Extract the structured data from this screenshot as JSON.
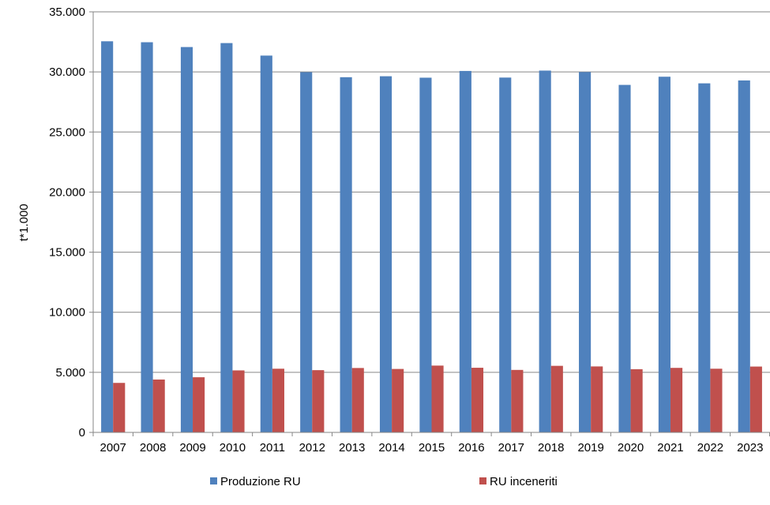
{
  "chart_data": {
    "type": "bar",
    "title": "",
    "xlabel": "",
    "ylabel": "t*1.000",
    "ylim": [
      0,
      35000
    ],
    "yticks": [
      0,
      5000,
      10000,
      15000,
      20000,
      25000,
      30000,
      35000
    ],
    "ytick_labels": [
      "0",
      "5.000",
      "10.000",
      "15.000",
      "20.000",
      "25.000",
      "30.000",
      "35.000"
    ],
    "grid": true,
    "legend_position": "bottom",
    "categories": [
      "2007",
      "2008",
      "2009",
      "2010",
      "2011",
      "2012",
      "2013",
      "2014",
      "2015",
      "2016",
      "2017",
      "2018",
      "2019",
      "2020",
      "2021",
      "2022",
      "2023"
    ],
    "series": [
      {
        "name": "Produzione RU",
        "color": "#4F81BD",
        "values": [
          32550,
          32470,
          32070,
          32400,
          31360,
          29980,
          29560,
          29640,
          29520,
          30080,
          29530,
          30110,
          29990,
          28920,
          29600,
          29050,
          29290
        ]
      },
      {
        "name": "RU inceneriti",
        "color": "#C0504D",
        "values": [
          4120,
          4400,
          4590,
          5160,
          5300,
          5180,
          5360,
          5280,
          5560,
          5380,
          5200,
          5540,
          5490,
          5260,
          5370,
          5300,
          5480
        ]
      }
    ]
  }
}
